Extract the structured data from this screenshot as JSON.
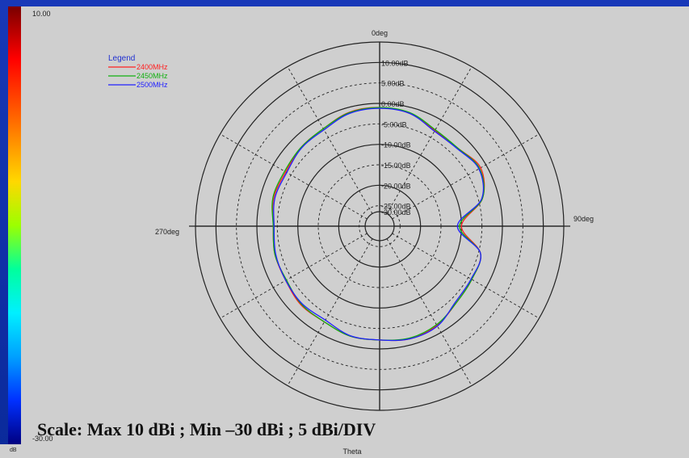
{
  "colorbar": {
    "top_label": "10.00",
    "bottom_label": "-30.00",
    "corner_label": "dB"
  },
  "scale_note": "Scale: Max 10 dBi ; Min –30 dBi ; 5 dBi/DIV",
  "chart_data": {
    "type": "polar-line",
    "title": "",
    "xlabel": "Theta",
    "angle_labels": [
      {
        "deg": 0,
        "text": "0deg"
      },
      {
        "deg": 90,
        "text": "90deg"
      },
      {
        "deg": 270,
        "text": "270deg"
      }
    ],
    "radial_range": [
      -30,
      15
    ],
    "radial_ticks": [
      "-30.00dB",
      "-25.00dB",
      "-20.00dB",
      "-15.00dB",
      "-10.00dB",
      "-5.00dB",
      "0.00dB",
      "5.00dB",
      "10.00dB"
    ],
    "radial_ticks_values": [
      -30,
      -25,
      -20,
      -15,
      -10,
      -5,
      0,
      5,
      10
    ],
    "grid": true,
    "legend": {
      "title": "Legend",
      "placement": "top-left"
    },
    "colors": {
      "2400MHz": "#ff2020",
      "2450MHz": "#10b010",
      "2500MHz": "#2020ff"
    },
    "theta": [
      0,
      15,
      30,
      45,
      60,
      75,
      90,
      105,
      120,
      135,
      150,
      165,
      180,
      195,
      210,
      225,
      240,
      255,
      270,
      285,
      300,
      315,
      330,
      345,
      360
    ],
    "series": [
      {
        "name": "2400MHz",
        "values": [
          -1,
          -1.5,
          -3,
          -3,
          -1.5,
          -4,
          -10,
          -4.5,
          -4,
          -3.5,
          -2,
          -1.5,
          -2.2,
          -2.2,
          -3,
          -2.8,
          -3.5,
          -3.5,
          -4,
          -3.2,
          -3.5,
          -2.8,
          -2.5,
          -1.2,
          -1
        ]
      },
      {
        "name": "2450MHz",
        "values": [
          -1,
          -1.3,
          -2.8,
          -3,
          -1.8,
          -4,
          -10.5,
          -4.5,
          -4,
          -3.5,
          -2.2,
          -1.7,
          -2.2,
          -2.2,
          -3,
          -3,
          -3.7,
          -3.5,
          -4,
          -3,
          -3.2,
          -2.8,
          -2.5,
          -1.3,
          -1
        ]
      },
      {
        "name": "2500MHz",
        "values": [
          -1.2,
          -1.5,
          -3.2,
          -3.2,
          -2,
          -4.2,
          -11,
          -4.5,
          -4.2,
          -3.8,
          -1.8,
          -1.5,
          -2.2,
          -2.3,
          -3.5,
          -3.2,
          -3.5,
          -3.7,
          -4.2,
          -3.5,
          -3.8,
          -3,
          -2.8,
          -1.5,
          -1.2
        ]
      }
    ]
  }
}
